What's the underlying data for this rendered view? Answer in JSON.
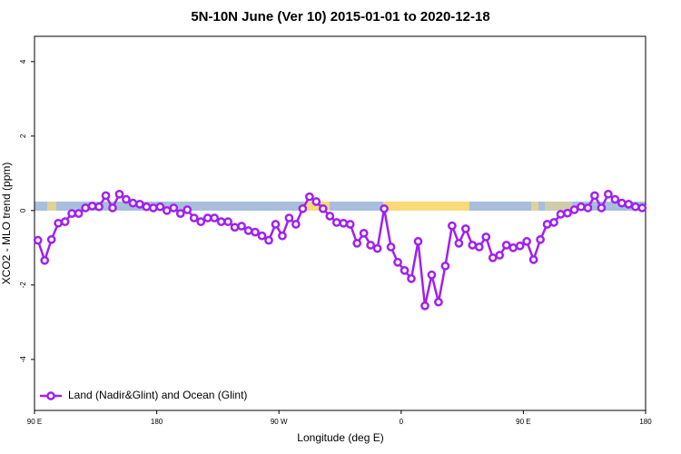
{
  "chart_data": {
    "type": "line",
    "title": "5N-10N June (Ver 10)   2015-01-01 to 2020-12-18",
    "x_label": "Longitude (deg E)",
    "y_label": "XCO2 - MLO trend (ppm)",
    "xlim": [
      90,
      540
    ],
    "xticks": [
      {
        "value": 90,
        "label": "90 E"
      },
      {
        "value": 180,
        "label": "180"
      },
      {
        "value": 270,
        "label": "90 W"
      },
      {
        "value": 360,
        "label": "0"
      },
      {
        "value": 450,
        "label": "90 E"
      },
      {
        "value": 540,
        "label": "180"
      }
    ],
    "ylim": [
      -5.37,
      4.68
    ],
    "yticks": [
      -4,
      -2,
      0,
      2,
      4
    ],
    "legend_position": "bottom-left",
    "x": [
      92.5,
      97.5,
      102.5,
      107.5,
      112.5,
      117.5,
      122.5,
      127.5,
      132.5,
      137.5,
      142.5,
      147.5,
      152.5,
      157.5,
      162.5,
      167.5,
      172.5,
      177.5,
      182.5,
      187.5,
      192.5,
      197.5,
      202.5,
      207.5,
      212.5,
      217.5,
      222.5,
      227.5,
      232.5,
      237.5,
      242.5,
      247.5,
      252.5,
      257.5,
      262.5,
      267.5,
      272.5,
      277.5,
      282.5,
      287.5,
      292.5,
      297.5,
      302.5,
      307.5,
      312.5,
      317.5,
      322.5,
      327.5,
      332.5,
      337.5,
      342.5,
      347.5,
      352.5,
      357.5,
      362.5,
      367.5,
      372.5,
      377.5,
      382.5,
      387.5,
      392.5,
      397.5,
      402.5,
      407.5,
      412.5,
      417.5,
      422.5,
      427.5,
      432.5,
      437.5,
      442.5,
      447.5,
      452.5,
      457.5,
      462.5,
      467.5,
      472.5,
      477.5,
      482.5,
      487.5,
      492.5,
      497.5,
      502.5,
      507.5,
      512.5,
      517.5,
      522.5,
      527.5,
      532.5,
      537.5
    ],
    "series": [
      {
        "name": "Land (Nadir&Glint) and Ocean (Glint)",
        "color": "#a020f0",
        "values": [
          -0.8,
          -1.34,
          -0.78,
          -0.34,
          -0.3,
          -0.08,
          -0.08,
          0.07,
          0.12,
          0.1,
          0.4,
          0.07,
          0.44,
          0.3,
          0.2,
          0.17,
          0.1,
          0.07,
          0.1,
          0,
          0.07,
          -0.08,
          0.02,
          -0.2,
          -0.3,
          -0.2,
          -0.2,
          -0.3,
          -0.3,
          -0.45,
          -0.42,
          -0.54,
          -0.58,
          -0.68,
          -0.8,
          -0.37,
          -0.68,
          -0.2,
          -0.37,
          0.05,
          0.37,
          0.24,
          0.05,
          -0.15,
          -0.32,
          -0.34,
          -0.37,
          -0.88,
          -0.61,
          -0.93,
          -1.02,
          0.05,
          -0.98,
          -1.39,
          -1.61,
          -1.83,
          -0.83,
          -2.56,
          -1.73,
          -2.46,
          -1.49,
          -0.41,
          -0.88,
          -0.49,
          -0.93,
          -0.98,
          -0.71,
          -1.27,
          -1.2,
          -0.93,
          -1.0,
          -0.95,
          -0.83,
          -1.32,
          -0.78,
          -0.37,
          -0.32,
          -0.1,
          -0.07,
          0.02,
          0.1,
          0.07,
          0.4,
          0.07,
          0.44,
          0.3,
          0.2,
          0.17,
          0.1,
          0.07
        ]
      }
    ]
  }
}
